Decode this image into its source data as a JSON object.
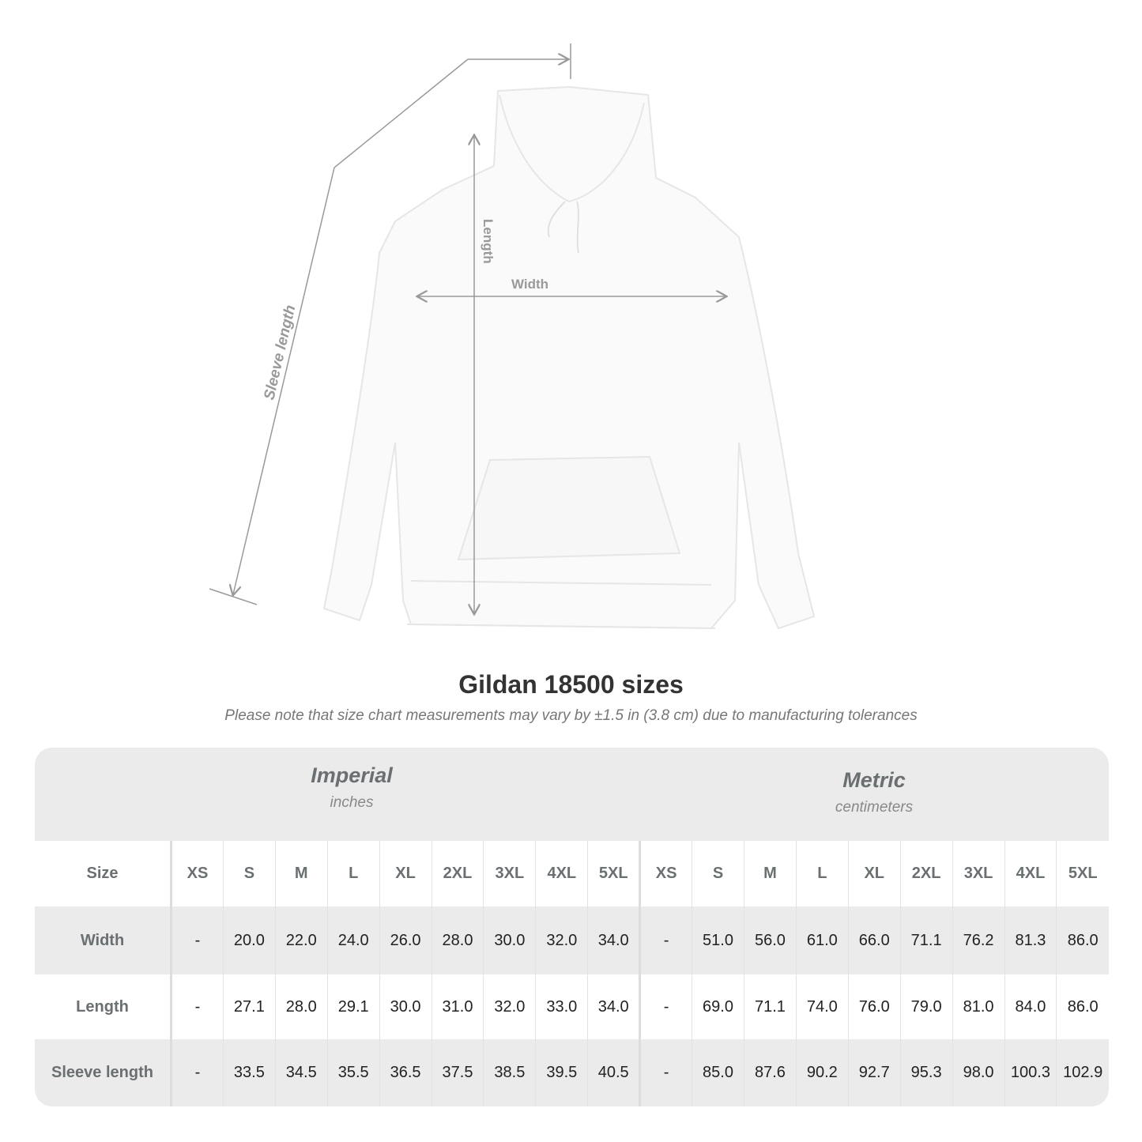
{
  "diagram": {
    "labels": {
      "length": "Length",
      "width": "Width",
      "sleeve": "Sleeve length"
    }
  },
  "title": "Gildan 18500 sizes",
  "subtitle": "Please note that size chart measurements may vary by ±1.5 in (3.8 cm) due to manufacturing tolerances",
  "systems": {
    "imperial": {
      "name": "Imperial",
      "unit": "inches"
    },
    "metric": {
      "name": "Metric",
      "unit": "centimeters"
    }
  },
  "table": {
    "size_label": "Size",
    "sizes": [
      "XS",
      "S",
      "M",
      "L",
      "XL",
      "2XL",
      "3XL",
      "4XL",
      "5XL"
    ],
    "rows": [
      {
        "label": "Width",
        "imperial": [
          "-",
          "20.0",
          "22.0",
          "24.0",
          "26.0",
          "28.0",
          "30.0",
          "32.0",
          "34.0"
        ],
        "metric": [
          "-",
          "51.0",
          "56.0",
          "61.0",
          "66.0",
          "71.1",
          "76.2",
          "81.3",
          "86.0"
        ]
      },
      {
        "label": "Length",
        "imperial": [
          "-",
          "27.1",
          "28.0",
          "29.1",
          "30.0",
          "31.0",
          "32.0",
          "33.0",
          "34.0"
        ],
        "metric": [
          "-",
          "69.0",
          "71.1",
          "74.0",
          "76.0",
          "79.0",
          "81.0",
          "84.0",
          "86.0"
        ]
      },
      {
        "label": "Sleeve length",
        "imperial": [
          "-",
          "33.5",
          "34.5",
          "35.5",
          "36.5",
          "37.5",
          "38.5",
          "39.5",
          "40.5"
        ],
        "metric": [
          "-",
          "85.0",
          "87.6",
          "90.2",
          "92.7",
          "95.3",
          "98.0",
          "100.3",
          "102.9"
        ]
      }
    ]
  }
}
